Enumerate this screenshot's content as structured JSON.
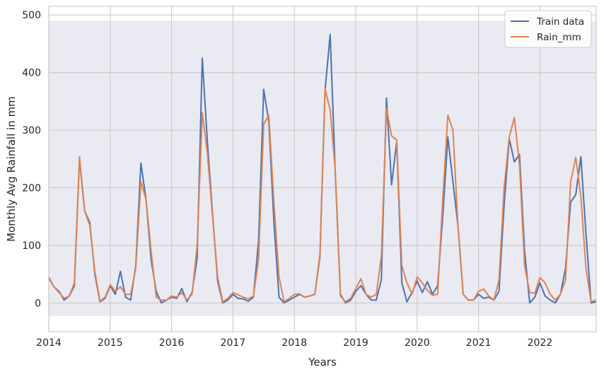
{
  "chart_data": {
    "type": "line",
    "xlabel": "Years",
    "ylabel": "Monthly Avg Rainfall in mm",
    "x_start": "2014-01",
    "x_end": "2022-12",
    "xlim": [
      "2014-01",
      "2022-12"
    ],
    "ylim": [
      -50,
      515
    ],
    "shaded_band_y": [
      -23,
      490
    ],
    "grid": true,
    "legend_position": "top-right",
    "x_tick_labels": [
      "2014",
      "2015",
      "2016",
      "2017",
      "2018",
      "2019",
      "2020",
      "2021",
      "2022"
    ],
    "y_ticks": [
      0,
      100,
      200,
      300,
      400,
      500
    ],
    "y_tick_labels": [
      "0",
      "100",
      "200",
      "300",
      "400",
      "500"
    ],
    "colors": {
      "train": "#4c72b0",
      "rain": "#dd8452",
      "band": "#eaeaf2",
      "grid": "#cccccc"
    },
    "series": [
      {
        "name": "Train data",
        "values": [
          43,
          28,
          20,
          5,
          12,
          30,
          250,
          160,
          140,
          50,
          2,
          8,
          30,
          15,
          55,
          10,
          5,
          65,
          243,
          180,
          75,
          20,
          0,
          5,
          10,
          8,
          25,
          2,
          18,
          78,
          425,
          280,
          155,
          38,
          0,
          5,
          15,
          8,
          7,
          3,
          10,
          108,
          371,
          315,
          140,
          10,
          0,
          5,
          10,
          15,
          10,
          12,
          15,
          80,
          370,
          466,
          225,
          15,
          0,
          5,
          20,
          30,
          15,
          5,
          5,
          40,
          356,
          205,
          280,
          35,
          2,
          18,
          38,
          18,
          37,
          15,
          30,
          150,
          288,
          210,
          132,
          15,
          5,
          5,
          15,
          8,
          10,
          5,
          20,
          170,
          285,
          245,
          258,
          90,
          0,
          10,
          35,
          12,
          5,
          0,
          15,
          60,
          175,
          188,
          254,
          120,
          0,
          2
        ]
      },
      {
        "name": "Rain_mm",
        "values": [
          45,
          28,
          18,
          8,
          12,
          35,
          254,
          160,
          135,
          55,
          3,
          10,
          32,
          20,
          28,
          15,
          15,
          60,
          210,
          180,
          90,
          10,
          5,
          5,
          12,
          10,
          18,
          5,
          15,
          100,
          330,
          260,
          150,
          45,
          2,
          8,
          18,
          14,
          10,
          7,
          12,
          75,
          310,
          326,
          175,
          45,
          2,
          8,
          15,
          16,
          10,
          12,
          15,
          85,
          372,
          335,
          230,
          12,
          2,
          8,
          25,
          42,
          15,
          10,
          15,
          80,
          338,
          290,
          283,
          65,
          35,
          15,
          45,
          35,
          22,
          13,
          15,
          180,
          326,
          300,
          130,
          15,
          5,
          5,
          20,
          24,
          12,
          5,
          40,
          200,
          288,
          322,
          240,
          65,
          18,
          17,
          44,
          35,
          15,
          5,
          15,
          40,
          210,
          253,
          185,
          60,
          2,
          5
        ]
      }
    ]
  }
}
